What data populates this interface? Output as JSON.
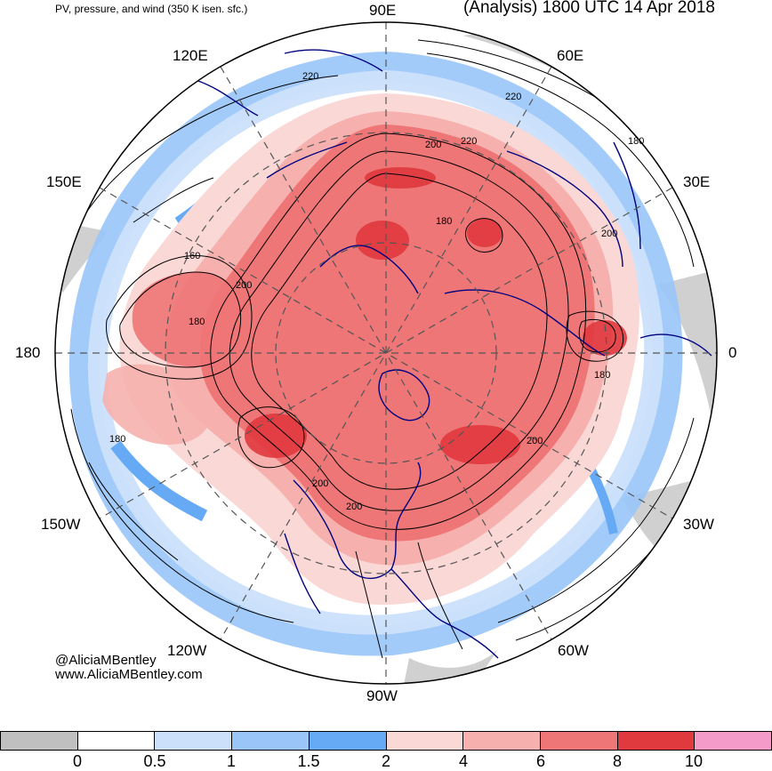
{
  "header": {
    "subtitle": "PV, pressure, and wind (350 K isen. sfc.)",
    "title": "(Analysis) 1800 UTC 14 Apr 2018"
  },
  "longitude_labels": {
    "lon_90e": "90E",
    "lon_60e": "60E",
    "lon_120e": "120E",
    "lon_30e": "30E",
    "lon_150e": "150E",
    "lon_180": "180",
    "lon_0": "0",
    "lon_150w": "150W",
    "lon_30w": "30W",
    "lon_120w": "120W",
    "lon_60w": "60W",
    "lon_90w": "90W"
  },
  "contour_labels": [
    "220",
    "220",
    "200",
    "220",
    "180",
    "200",
    "180",
    "160",
    "200",
    "180",
    "180",
    "180",
    "200",
    "200",
    "200"
  ],
  "credits": {
    "handle": "@AliciaMBentley",
    "website": "www.AliciaMBentley.com"
  },
  "colorbar": {
    "colors": [
      "#c0c0c0",
      "#ffffff",
      "#cce0fb",
      "#99c5f8",
      "#66aaf5",
      "#f9d8d6",
      "#f6b1ae",
      "#ee7677",
      "#e0393e",
      "#f59bc9"
    ],
    "tick_labels": [
      "0",
      "0.5",
      "1",
      "1.5",
      "2",
      "4",
      "6",
      "8",
      "10"
    ]
  }
}
